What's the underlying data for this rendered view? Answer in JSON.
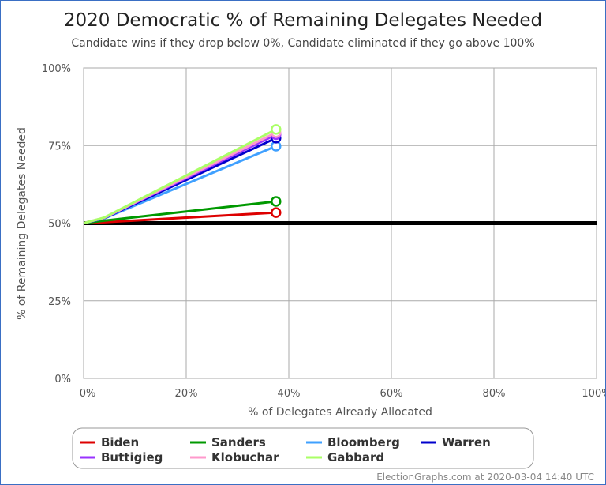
{
  "chart_data": {
    "type": "line",
    "title": "2020 Democratic % of Remaining Delegates Needed",
    "subtitle": "Candidate wins if they drop below 0%, Candidate eliminated if they go above 100%",
    "xlabel": "% of Delegates Already Allocated",
    "ylabel": "% of Remaining Delegates Needed",
    "xlim": [
      0,
      100
    ],
    "ylim": [
      0,
      100
    ],
    "xticks": [
      "0%",
      "20%",
      "40%",
      "60%",
      "80%",
      "100%"
    ],
    "yticks": [
      "0%",
      "25%",
      "50%",
      "75%",
      "100%"
    ],
    "grid": true,
    "legend_position": "bottom",
    "reference_line": {
      "y": 50,
      "color": "#000000"
    },
    "series": [
      {
        "name": "Biden",
        "color": "#dd0000",
        "points": [
          [
            0,
            50
          ],
          [
            4,
            50.3
          ],
          [
            37.5,
            53.4
          ]
        ]
      },
      {
        "name": "Sanders",
        "color": "#009900",
        "points": [
          [
            0,
            50
          ],
          [
            4,
            50.8
          ],
          [
            37.5,
            57.0
          ]
        ]
      },
      {
        "name": "Bloomberg",
        "color": "#3fa0ff",
        "points": [
          [
            0,
            50
          ],
          [
            4,
            51.5
          ],
          [
            37.5,
            74.8
          ]
        ]
      },
      {
        "name": "Warren",
        "color": "#0000cc",
        "points": [
          [
            0,
            50
          ],
          [
            4,
            51.6
          ],
          [
            37.5,
            77.4
          ]
        ]
      },
      {
        "name": "Buttigieg",
        "color": "#9933ff",
        "points": [
          [
            0,
            50
          ],
          [
            4,
            51.7
          ],
          [
            37.5,
            78.5
          ]
        ]
      },
      {
        "name": "Klobuchar",
        "color": "#ff99cc",
        "points": [
          [
            0,
            50
          ],
          [
            4,
            51.7
          ],
          [
            37.5,
            79.2
          ]
        ]
      },
      {
        "name": "Gabbard",
        "color": "#aaff66",
        "points": [
          [
            0,
            50
          ],
          [
            4,
            51.8
          ],
          [
            37.5,
            80.2
          ]
        ]
      }
    ],
    "credit": "ElectionGraphs.com at 2020-03-04 14:40 UTC"
  }
}
